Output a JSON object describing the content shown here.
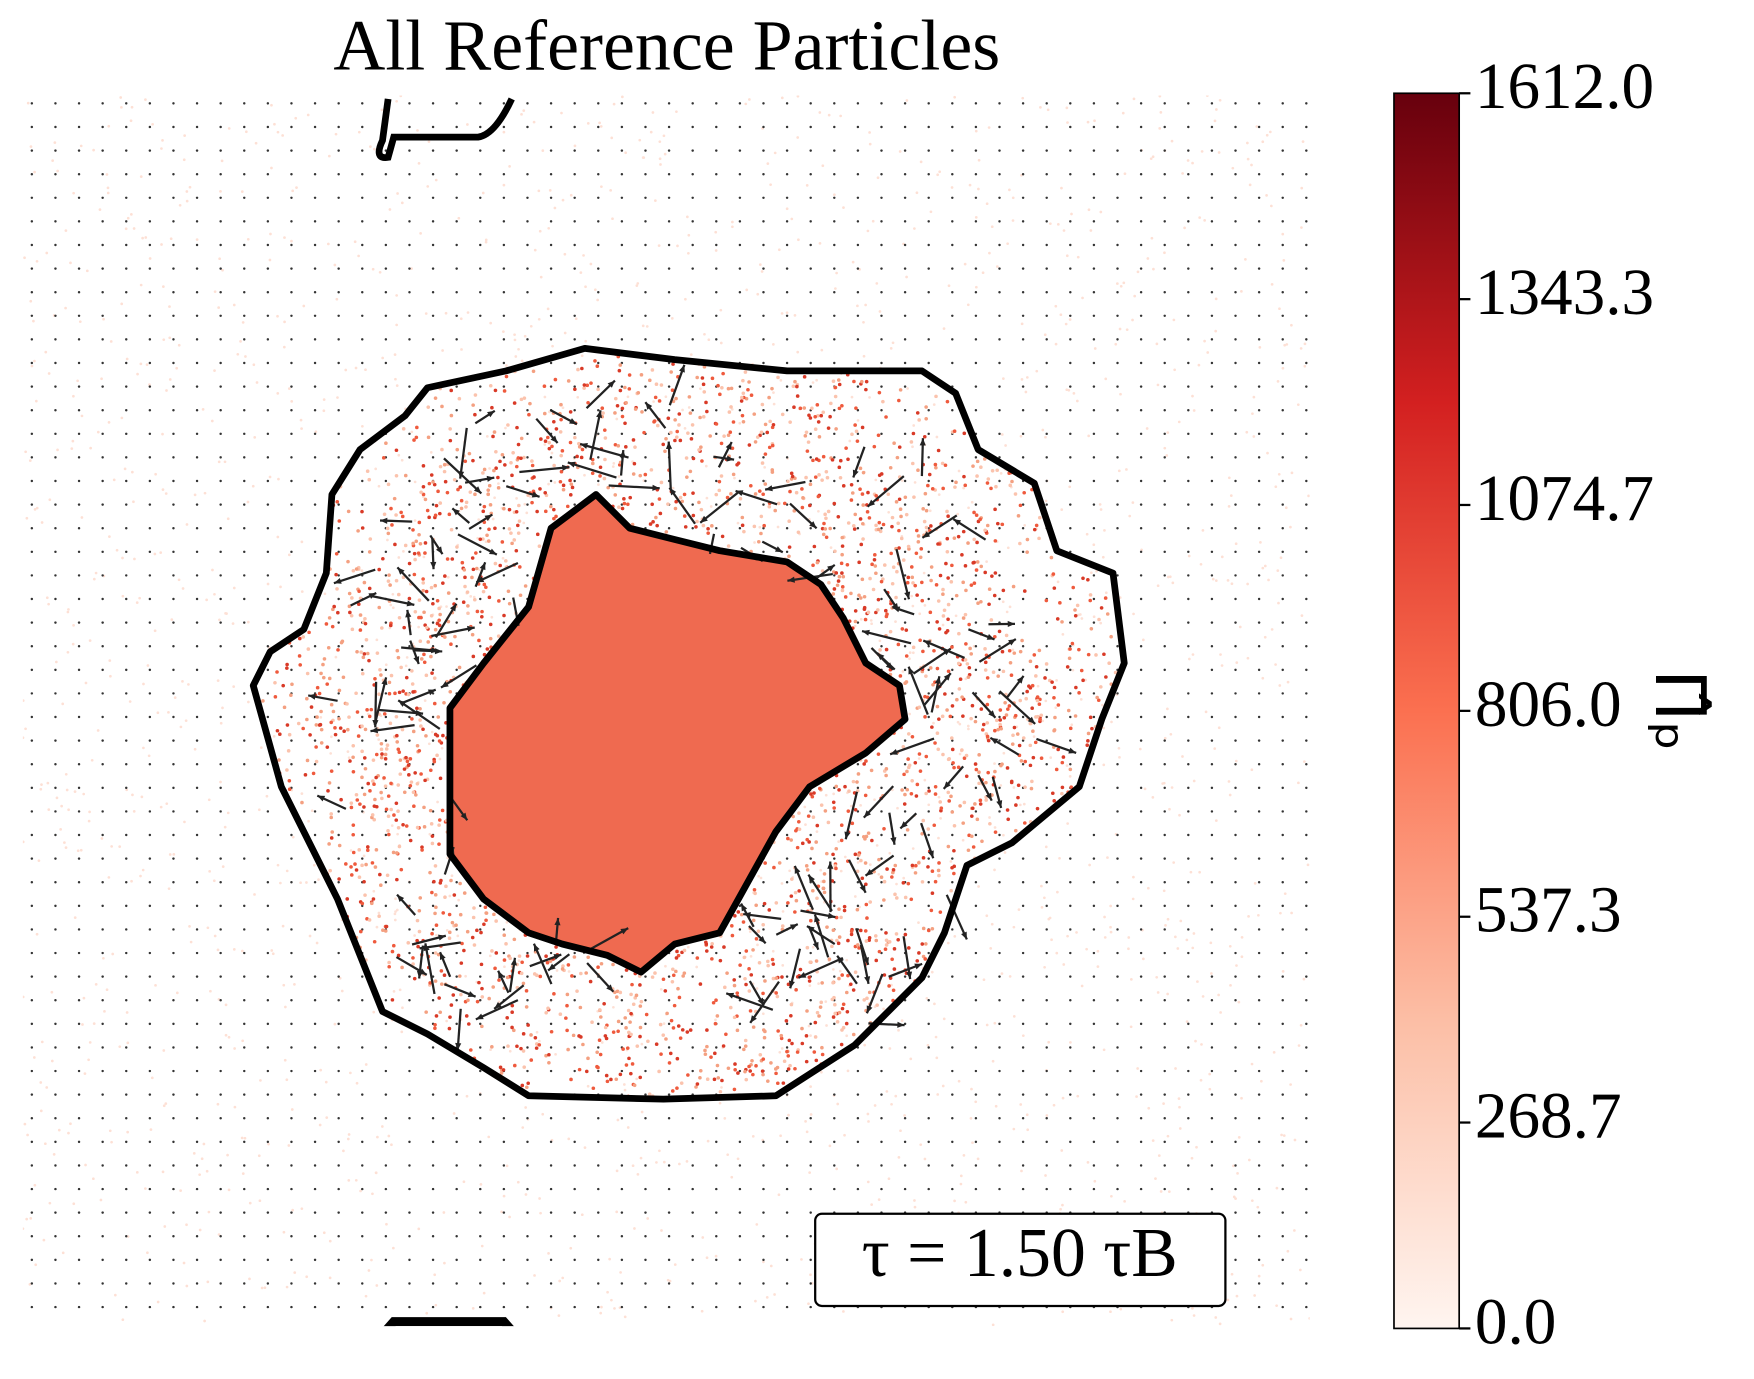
{
  "chart_data": {
    "type": "scatter",
    "title": "All Reference Particles",
    "annotation": "τ = 1.50 τB",
    "colorbar": {
      "label": "Π̂ₚ",
      "clim": [
        0,
        1612
      ],
      "ticks": [
        {
          "value": 0,
          "label": "0.0"
        },
        {
          "value": 268.7,
          "label": "268.7"
        },
        {
          "value": 537.3,
          "label": "537.3"
        },
        {
          "value": 806.0,
          "label": "806.0"
        },
        {
          "value": 1074.7,
          "label": "1074.7"
        },
        {
          "value": 1343.3,
          "label": "1343.3"
        },
        {
          "value": 1612.0,
          "label": "1612.0"
        }
      ],
      "colormap": [
        "#fff5f0",
        "#fcbea5",
        "#fb7050",
        "#d32020",
        "#67000d"
      ]
    }
  }
}
